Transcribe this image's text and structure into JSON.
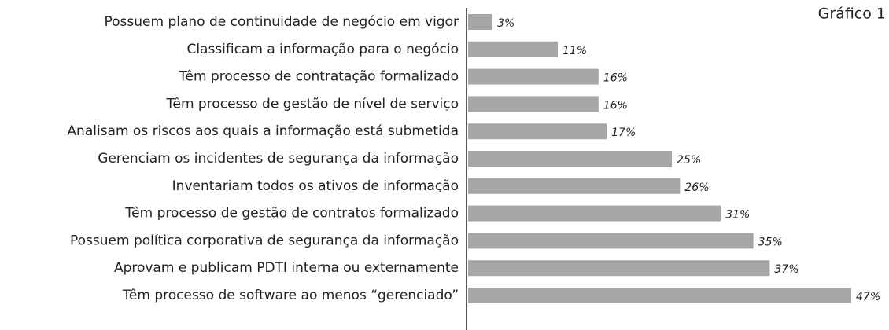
{
  "chart_data": {
    "type": "bar",
    "orientation": "horizontal",
    "title": "Gráfico 1",
    "categories": [
      "Possuem plano de continuidade de negócio em vigor",
      "Classificam a informação para o negócio",
      "Têm processo de contratação formalizado",
      "Têm processo de gestão de nível de serviço",
      "Analisam os riscos aos quais a informação está submetida",
      "Gerenciam os incidentes de segurança da informação",
      "Inventariam todos os ativos de informação",
      "Têm processo de gestão de contratos formalizado",
      "Possuem política corporativa de segurança da informação",
      "Aprovam e publicam PDTI interna ou externamente",
      "Têm processo de software ao menos “gerenciado”"
    ],
    "values": [
      3,
      11,
      16,
      16,
      17,
      25,
      26,
      31,
      35,
      37,
      47
    ],
    "value_labels": [
      "3%",
      "11%",
      "16%",
      "16%",
      "17%",
      "25%",
      "26%",
      "31%",
      "35%",
      "37%",
      "47%"
    ],
    "color": "#a6a6a8"
  }
}
